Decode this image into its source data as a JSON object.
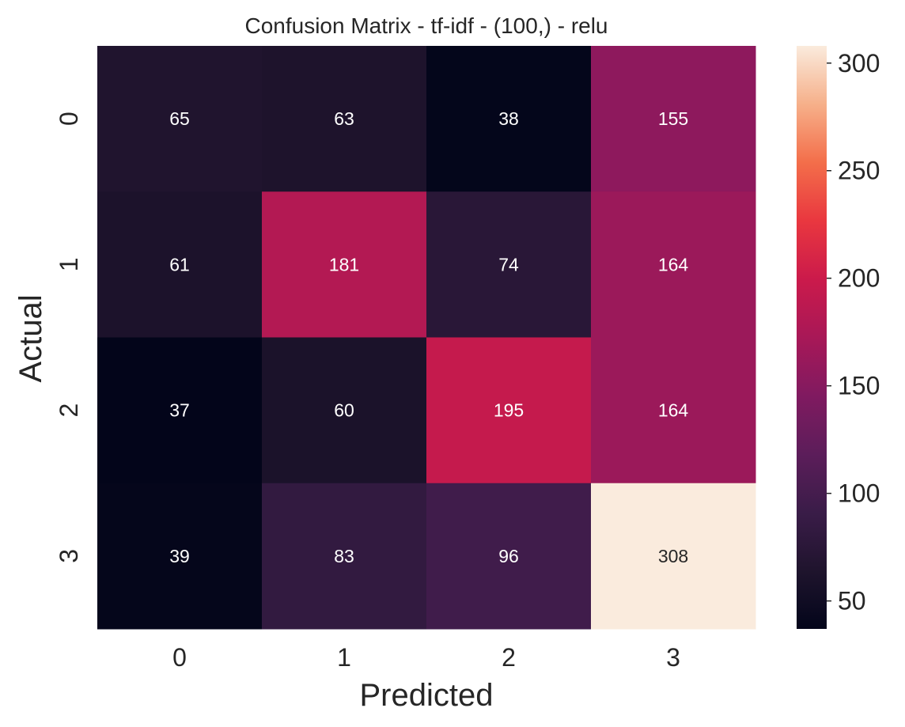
{
  "chart_data": {
    "type": "heatmap",
    "title": "Confusion Matrix - tf-idf - (100,) - relu",
    "xlabel": "Predicted",
    "ylabel": "Actual",
    "x_categories": [
      "0",
      "1",
      "2",
      "3"
    ],
    "y_categories": [
      "0",
      "1",
      "2",
      "3"
    ],
    "values": [
      [
        65,
        63,
        38,
        155
      ],
      [
        61,
        181,
        74,
        164
      ],
      [
        37,
        60,
        195,
        164
      ],
      [
        39,
        83,
        96,
        308
      ]
    ],
    "colorbar": {
      "min": 37,
      "max": 308,
      "ticks": [
        50,
        100,
        150,
        200,
        250,
        300
      ],
      "colormap": "rocket"
    },
    "grid": false,
    "legend": "colorbar-right"
  }
}
